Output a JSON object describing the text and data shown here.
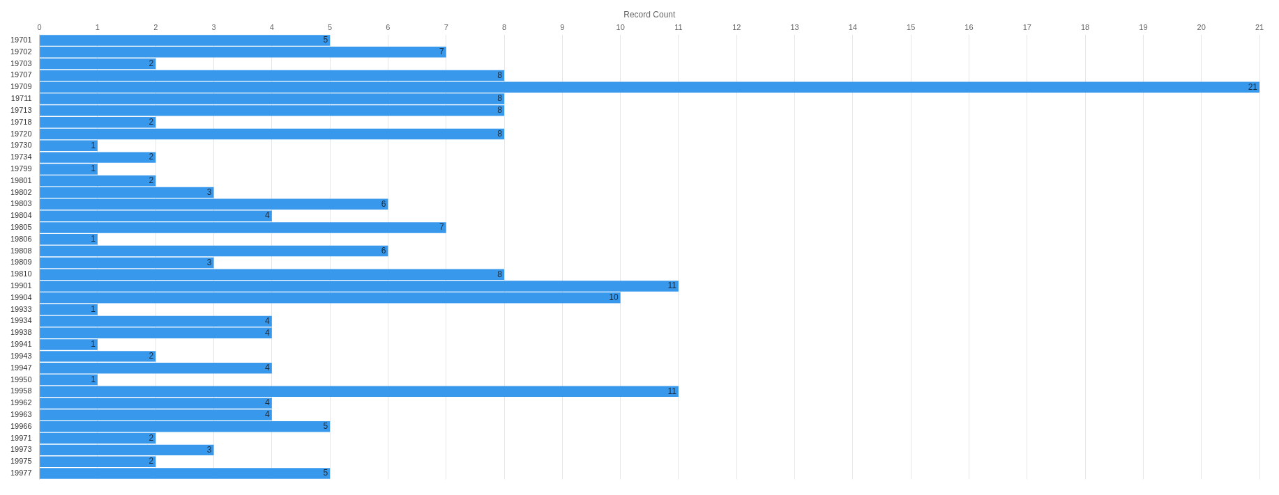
{
  "chart_data": {
    "type": "bar",
    "orientation": "horizontal",
    "xlabel": "Record Count",
    "categories": [
      "19701",
      "19702",
      "19703",
      "19707",
      "19709",
      "19711",
      "19713",
      "19718",
      "19720",
      "19730",
      "19734",
      "19799",
      "19801",
      "19802",
      "19803",
      "19804",
      "19805",
      "19806",
      "19808",
      "19809",
      "19810",
      "19901",
      "19904",
      "19933",
      "19934",
      "19938",
      "19941",
      "19943",
      "19947",
      "19950",
      "19958",
      "19962",
      "19963",
      "19966",
      "19971",
      "19973",
      "19975",
      "19977"
    ],
    "values": [
      5,
      7,
      2,
      8,
      21,
      8,
      8,
      2,
      8,
      1,
      2,
      1,
      2,
      3,
      6,
      4,
      7,
      1,
      6,
      3,
      8,
      11,
      10,
      1,
      4,
      4,
      1,
      2,
      4,
      1,
      11,
      4,
      4,
      5,
      2,
      3,
      2,
      5
    ],
    "color": "#3898ec",
    "xlim": [
      0,
      21
    ],
    "xticks": [
      0,
      1,
      2,
      3,
      4,
      5,
      6,
      7,
      8,
      9,
      10,
      11,
      12,
      13,
      14,
      15,
      16,
      17,
      18,
      19,
      20,
      21
    ],
    "grid": "x",
    "data_labels": true,
    "legend": false
  }
}
